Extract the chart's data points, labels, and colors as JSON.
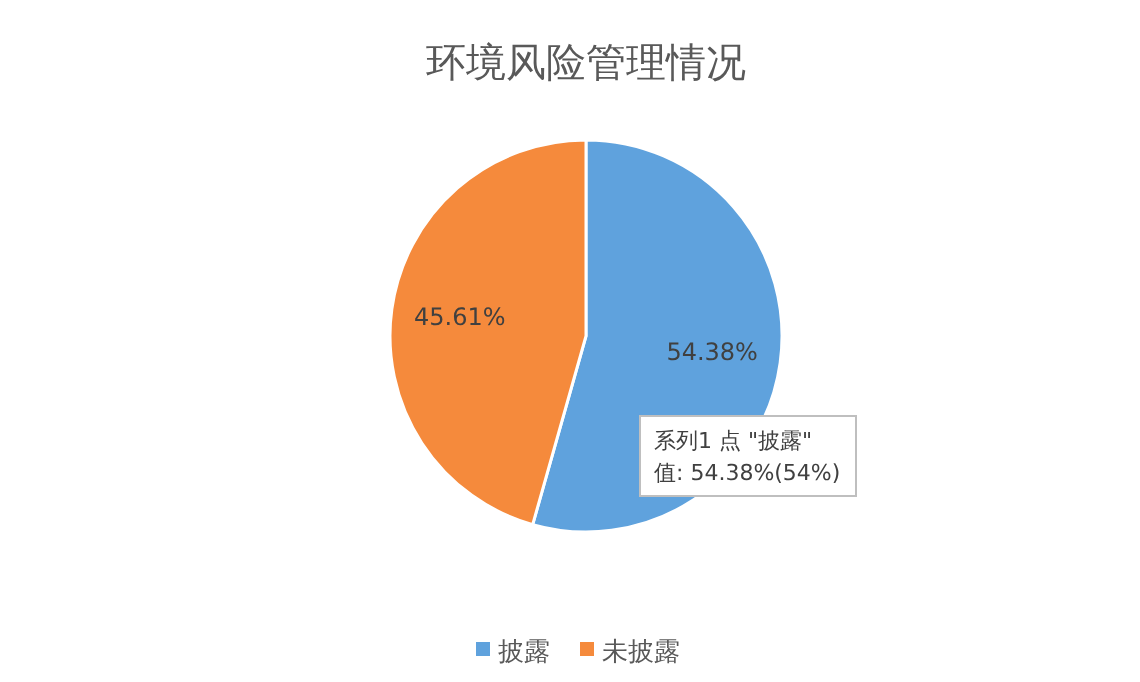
{
  "chart_data": {
    "type": "pie",
    "title": "环境风险管理情况",
    "categories": [
      "披露",
      "未披露"
    ],
    "values": [
      54.38,
      45.61
    ],
    "colors": [
      "#5fa2dd",
      "#f58a3c"
    ],
    "value_labels": [
      "54.38%",
      "45.61%"
    ],
    "legend": "bottom",
    "annotations": [
      "系列1 点 \"披露\"",
      "值: 54.38%(54%)"
    ]
  }
}
